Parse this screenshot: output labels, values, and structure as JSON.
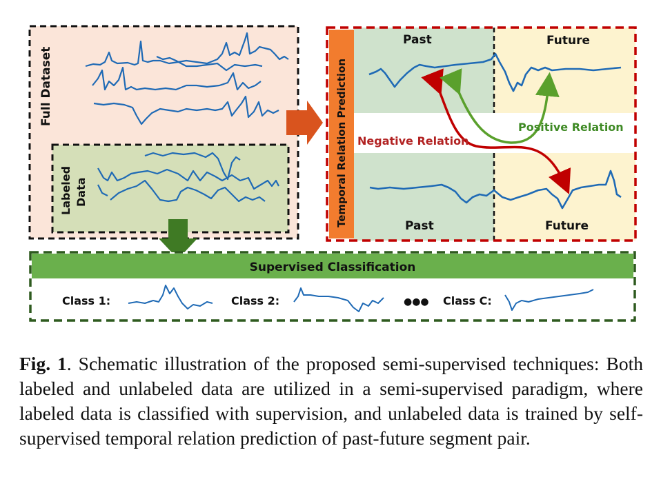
{
  "full_dataset": {
    "label": "Full Dataset"
  },
  "labeled_data": {
    "label_line1": "Labeled",
    "label_line2": "Data"
  },
  "temporal": {
    "sidebar_label": "Temporal Relation Prediction",
    "past_top": "Past",
    "future_top": "Future",
    "past_bottom": "Past",
    "future_bottom": "Future",
    "negative": "Negative Relation",
    "positive": "Positive Relation"
  },
  "supervised": {
    "title": "Supervised Classification",
    "class1": "Class 1:",
    "class2": "Class 2:",
    "dots": "●●●",
    "classc": "Class C:"
  },
  "caption": {
    "fig": "Fig. 1",
    "text": ". Schematic illustration of the proposed semi-supervised techniques: Both labeled and unlabeled data are utilized in a semi-supervised paradigm, where labeled data is classified with supervision, and unlabeled data is trained by self-supervised temporal relation prediction of past-future segment pair."
  },
  "colors": {
    "full_bg": "#fbe5d9",
    "labeled_bg": "#d5dfb8",
    "past_bg": "#cfe2cc",
    "future_bg": "#fdf3cf",
    "sidebar": "#f27c2e",
    "red_border": "#c00000",
    "green_border": "#2e5a1f",
    "super_bar": "#6ab04c",
    "signal": "#1f6ab5",
    "arrow_orange": "#d9541e",
    "arrow_green": "#3f7a24",
    "neg_arrow": "#c00000",
    "pos_arrow": "#5aa02c"
  }
}
